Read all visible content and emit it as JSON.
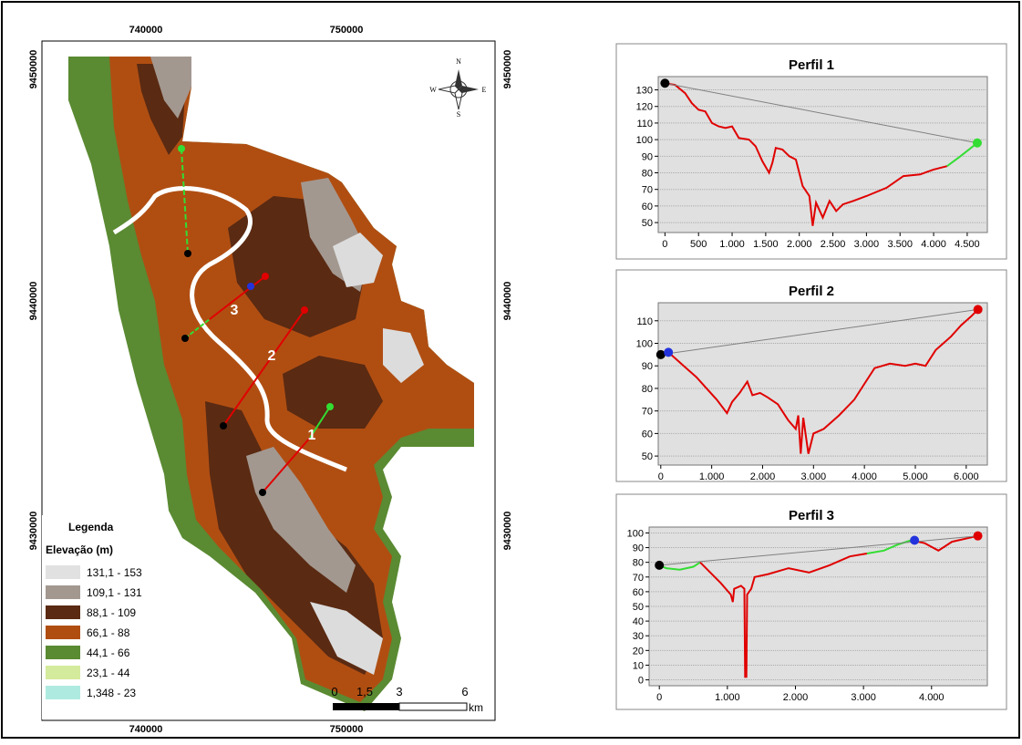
{
  "map": {
    "x_labels": [
      "740000",
      "750000"
    ],
    "y_labels": [
      "9450000",
      "9440000",
      "9430000"
    ],
    "compass": [
      "N",
      "S",
      "E",
      "W"
    ],
    "profile_labels": [
      "1",
      "2",
      "3"
    ],
    "scale_labels": [
      "0",
      "1,5",
      "3",
      "6"
    ],
    "scale_unit": "km",
    "legend": {
      "title": "Legenda",
      "subtitle": "Elevação (m)",
      "items": [
        {
          "label": "131,1 - 153",
          "color": "#e1e1e1"
        },
        {
          "label": "109,1 - 131",
          "color": "#a39890"
        },
        {
          "label": "88,1 - 109",
          "color": "#5a2a12"
        },
        {
          "label": "66,1 - 88",
          "color": "#b04e12"
        },
        {
          "label": "44,1 - 66",
          "color": "#5a8a32"
        },
        {
          "label": "23,1 - 44",
          "color": "#d4ea9c"
        },
        {
          "label": "1,348 - 23",
          "color": "#aeeae0"
        }
      ]
    }
  },
  "chart_data": [
    {
      "type": "line",
      "title": "Perfil 1",
      "series": [
        {
          "color": "#e00000",
          "x": [
            0,
            150,
            300,
            400,
            500,
            600,
            700,
            800,
            900,
            1000,
            1100,
            1250,
            1350,
            1450,
            1550,
            1600,
            1650,
            1750,
            1850,
            1950,
            2050,
            2150,
            2200,
            2250,
            2350,
            2450,
            2550,
            2650,
            2800,
            3000,
            3300,
            3550,
            3800,
            4000,
            4200
          ],
          "values": [
            134,
            133,
            128,
            122,
            118,
            117,
            110,
            108,
            107,
            108,
            101,
            100,
            96,
            87,
            80,
            86,
            95,
            94,
            90,
            88,
            72,
            66,
            48,
            62,
            53,
            63,
            57,
            61,
            63,
            66,
            71,
            78,
            79,
            82,
            84
          ]
        },
        {
          "color": "#33dd33",
          "x": [
            4200,
            4400,
            4650
          ],
          "values": [
            84,
            90,
            98
          ]
        },
        {
          "color": "#808080",
          "x": [
            0,
            4650
          ],
          "values": [
            134,
            98
          ]
        }
      ],
      "markers": [
        {
          "x": 0,
          "y": 134,
          "color": "#000000"
        },
        {
          "x": 4650,
          "y": 98,
          "color": "#33dd33"
        }
      ],
      "xlim": [
        -100,
        4800
      ],
      "ylim": [
        44,
        138
      ],
      "xticks": [
        0,
        500,
        {
          "value": 1000,
          "label": "1.000"
        },
        {
          "value": 1500,
          "label": "1.500"
        },
        {
          "value": 2000,
          "label": "2.000"
        },
        {
          "value": 2500,
          "label": "2.500"
        },
        {
          "value": 3000,
          "label": "3.000"
        },
        {
          "value": 3500,
          "label": "3.500"
        },
        {
          "value": 4000,
          "label": "4.000"
        },
        {
          "value": 4500,
          "label": "4.500"
        }
      ],
      "yticks": [
        50,
        60,
        70,
        80,
        90,
        100,
        110,
        120,
        130
      ]
    },
    {
      "type": "line",
      "title": "Perfil 2",
      "series": [
        {
          "color": "#e00000",
          "x": [
            0,
            150,
            300,
            500,
            700,
            900,
            1100,
            1300,
            1400,
            1550,
            1700,
            1800,
            1950,
            2100,
            2300,
            2500,
            2650,
            2700,
            2750,
            2800,
            2900,
            3000,
            3200,
            3500,
            3800,
            4000,
            4200,
            4500,
            4800,
            5000,
            5200,
            5400,
            5700,
            5900,
            6100,
            6230
          ],
          "values": [
            95,
            96,
            93,
            89,
            85,
            80,
            75,
            69,
            74,
            78,
            83,
            77,
            78,
            76,
            73,
            66,
            62,
            68,
            51,
            67,
            51,
            60,
            62,
            68,
            75,
            82,
            89,
            91,
            90,
            91,
            90,
            97,
            103,
            108,
            112,
            115
          ]
        },
        {
          "color": "#808080",
          "x": [
            0,
            6230
          ],
          "values": [
            95,
            115
          ]
        }
      ],
      "markers": [
        {
          "x": 0,
          "y": 95,
          "color": "#000000"
        },
        {
          "x": 150,
          "y": 96,
          "color": "#2233dd"
        },
        {
          "x": 6230,
          "y": 115,
          "color": "#e00000"
        }
      ],
      "xlim": [
        -50,
        6415
      ],
      "ylim": [
        46,
        118
      ],
      "xticks": [
        0,
        {
          "value": 1000,
          "label": "1.000"
        },
        {
          "value": 2000,
          "label": "2.000"
        },
        {
          "value": 3000,
          "label": "3.000"
        },
        {
          "value": 4000,
          "label": "4.000"
        },
        {
          "value": 5000,
          "label": "5.000"
        },
        {
          "value": 6000,
          "label": "6.000"
        }
      ],
      "yticks": [
        50,
        60,
        70,
        80,
        90,
        100,
        110
      ]
    },
    {
      "type": "line",
      "title": "Perfil 3",
      "series": [
        {
          "color": "#33dd33",
          "x": [
            0,
            100,
            300,
            500,
            600
          ],
          "values": [
            78,
            76,
            75,
            77,
            80
          ]
        },
        {
          "color": "#e00000",
          "x": [
            600,
            750,
            900,
            1050,
            1080,
            1100,
            1200,
            1250,
            1260,
            1280,
            1290,
            1350,
            1400,
            1600,
            1900,
            2200,
            2500,
            2800,
            3050
          ],
          "values": [
            80,
            73,
            66,
            58,
            53,
            62,
            64,
            62,
            2,
            2,
            58,
            62,
            70,
            72,
            76,
            73,
            78,
            84,
            86
          ]
        },
        {
          "color": "#33dd33",
          "x": [
            3050,
            3300,
            3500,
            3700
          ],
          "values": [
            86,
            88,
            92,
            95
          ]
        },
        {
          "color": "#e00000",
          "x": [
            3700,
            3900,
            4100,
            4300,
            4680
          ],
          "values": [
            95,
            93,
            88,
            94,
            98
          ]
        },
        {
          "color": "#808080",
          "x": [
            0,
            4680
          ],
          "values": [
            78,
            98
          ]
        }
      ],
      "markers": [
        {
          "x": 0,
          "y": 78,
          "color": "#000000"
        },
        {
          "x": 3750,
          "y": 95,
          "color": "#2233dd"
        },
        {
          "x": 4680,
          "y": 98,
          "color": "#e00000"
        }
      ],
      "xlim": [
        -150,
        4820
      ],
      "ylim": [
        -4,
        104
      ],
      "xticks": [
        0,
        {
          "value": 1000,
          "label": "1.000"
        },
        {
          "value": 2000,
          "label": "2.000"
        },
        {
          "value": 3000,
          "label": "3.000"
        },
        {
          "value": 4000,
          "label": "4.000"
        }
      ],
      "yticks": [
        0,
        10,
        20,
        30,
        40,
        50,
        60,
        70,
        80,
        90,
        100
      ]
    }
  ]
}
